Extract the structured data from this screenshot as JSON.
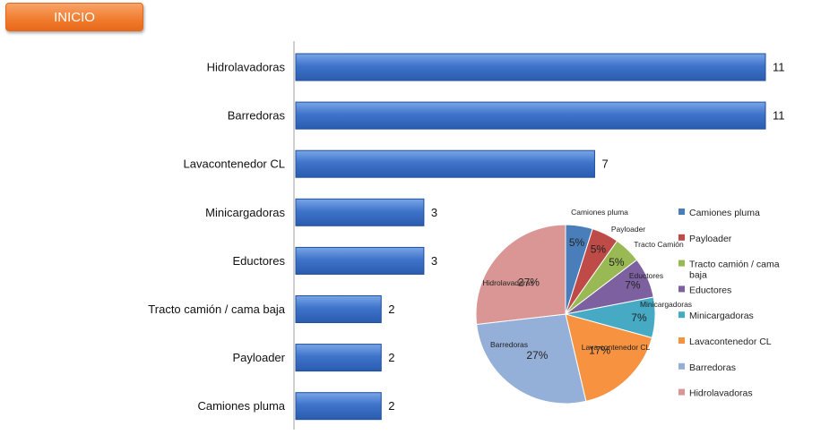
{
  "nav": {
    "inicio_label": "INICIO"
  },
  "colors": {
    "bar_fill": "#3d72c9",
    "bar_stroke": "#1f4e9c",
    "nav_button": "#f07b2c"
  },
  "chart_data": [
    {
      "type": "bar",
      "orientation": "horizontal",
      "categories": [
        "Hidrolavadoras",
        "Barredoras",
        "Lavacontenedor CL",
        "Minicargadoras",
        "Eductores",
        "Tracto camión / cama baja",
        "Payloader",
        "Camiones pluma"
      ],
      "values": [
        11,
        11,
        7,
        3,
        3,
        2,
        2,
        2
      ],
      "xlim": [
        0,
        11
      ],
      "grid": false
    },
    {
      "type": "pie",
      "slices": [
        {
          "label": "Camiones pluma",
          "chart_label": "Camiones pluma",
          "value": 2,
          "percent_label": "5%",
          "color": "#4a7ebb"
        },
        {
          "label": "Payloader",
          "chart_label": "Payloader",
          "value": 2,
          "percent_label": "5%",
          "color": "#be4b48"
        },
        {
          "label": "Tracto camión / cama baja",
          "chart_label": "Tracto Camión",
          "value": 2,
          "percent_label": "5%",
          "color": "#98b954"
        },
        {
          "label": "Eductores",
          "chart_label": "Eductores",
          "value": 3,
          "percent_label": "7%",
          "color": "#7d60a0"
        },
        {
          "label": "Minicargadoras",
          "chart_label": "Minicargadoras",
          "value": 3,
          "percent_label": "7%",
          "color": "#46aac5"
        },
        {
          "label": "Lavacontenedor CL",
          "chart_label": "Lava contenedor CL",
          "value": 7,
          "percent_label": "17%",
          "color": "#f69240"
        },
        {
          "label": "Barredoras",
          "chart_label": "Barredoras",
          "value": 11,
          "percent_label": "27%",
          "color": "#95b0d8"
        },
        {
          "label": "Hidrolavadoras",
          "chart_label": "Hidrolavadoras",
          "value": 11,
          "percent_label": "27%",
          "color": "#d99694"
        }
      ],
      "legend_position": "right"
    }
  ]
}
